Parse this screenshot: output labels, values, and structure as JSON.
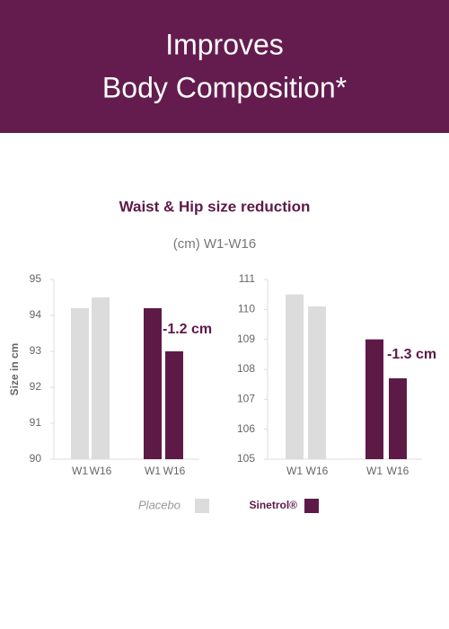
{
  "header": {
    "line1": "Improves",
    "line2": "Body Composition*"
  },
  "chart_data": [
    {
      "type": "bar",
      "title": "Waist & Hip size reduction",
      "subtitle": "(cm) W1-W16",
      "y_label": "Size in cm",
      "categories": [
        "W1",
        "W16",
        "W1",
        "W16"
      ],
      "series": [
        {
          "name": "Placebo",
          "color": "#dcdcdc",
          "values": [
            94.2,
            94.5,
            null,
            null
          ]
        },
        {
          "name": "Sinetrol®",
          "color": "#5e1a47",
          "values": [
            null,
            null,
            94.2,
            93.0
          ]
        }
      ],
      "ylim": [
        90,
        95
      ],
      "yticks": [
        90,
        91,
        92,
        93,
        94,
        95
      ],
      "annotation": "-1.2 cm"
    },
    {
      "type": "bar",
      "categories": [
        "W1",
        "W16",
        "W1",
        "W16"
      ],
      "series": [
        {
          "color": "#dcdcdc",
          "values": [
            110.5,
            110.1,
            null,
            null
          ]
        },
        {
          "color": "#5e1a47",
          "values": [
            null,
            null,
            109.0,
            107.7
          ]
        }
      ],
      "ylim": [
        105,
        111
      ],
      "yticks": [
        105,
        106,
        107,
        108,
        109,
        110,
        111
      ],
      "annotation": "-1.3 cm"
    }
  ]
}
